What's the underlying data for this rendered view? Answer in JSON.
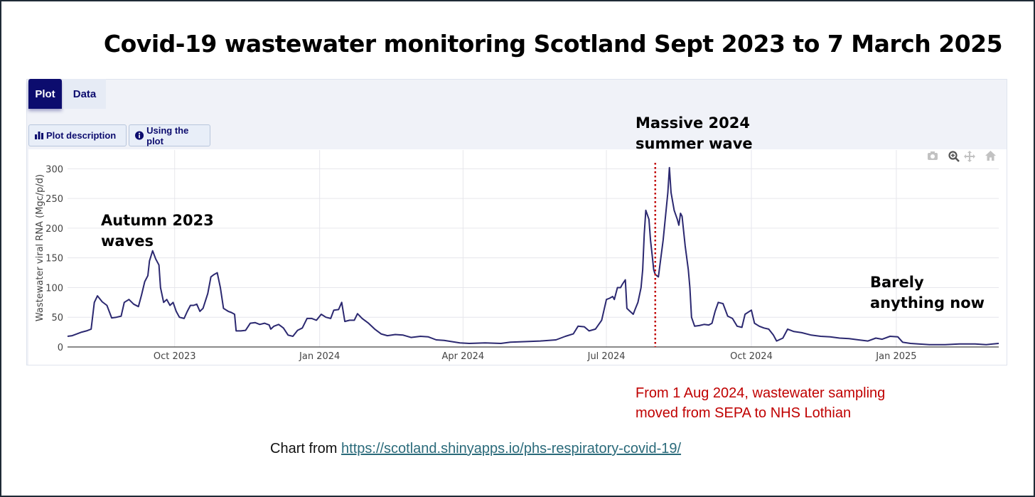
{
  "title": "Covid-19 wastewater monitoring Scotland Sept 2023 to 7 March 2025",
  "tabs": [
    {
      "label": "Plot"
    },
    {
      "label": "Data"
    }
  ],
  "buttons": {
    "plot_description": "Plot description",
    "using_the_plot": "Using the plot"
  },
  "modebar": [
    "camera-icon",
    "zoom-icon",
    "pan-icon",
    "home-icon"
  ],
  "annotations": {
    "autumn_line1": "Autumn 2023",
    "autumn_line2": "waves",
    "summer_line1": "Massive 2024",
    "summer_line2": "summer  wave",
    "now_line1": "Barely",
    "now_line2": "anything now"
  },
  "note": {
    "line1": "From 1 Aug 2024, wastewater sampling",
    "line2": "moved from SEPA to NHS Lothian"
  },
  "source": {
    "prefix": "Chart from ",
    "link": "https://scotland.shinyapps.io/phs-respiratory-covid-19/"
  },
  "colors": {
    "line": "#2b2870",
    "marker": "#c00000",
    "tab_active": "#0c0c6e"
  },
  "chart_data": {
    "type": "line",
    "title": "Covid-19 wastewater monitoring Scotland Sept 2023 to 7 March 2025",
    "xlabel": "",
    "ylabel": "Wastewater viral RNA (Mgc/p/d)",
    "ylim": [
      0,
      310
    ],
    "xlim": [
      "2023-07-25",
      "2025-03-07"
    ],
    "grid": true,
    "yticks": [
      0,
      50,
      100,
      150,
      200,
      250,
      300
    ],
    "xticks": [
      {
        "date": "2023-10-01",
        "label": "Oct 2023"
      },
      {
        "date": "2024-01-01",
        "label": "Jan 2024"
      },
      {
        "date": "2024-04-01",
        "label": "Apr 2024"
      },
      {
        "date": "2024-07-01",
        "label": "Jul 2024"
      },
      {
        "date": "2024-10-01",
        "label": "Oct 2024"
      },
      {
        "date": "2025-01-01",
        "label": "Jan 2025"
      }
    ],
    "vline": {
      "date": "2024-08-01",
      "label": "Sampling moved from SEPA to NHS Lothian"
    },
    "series": [
      {
        "name": "Scotland",
        "points": [
          [
            "2023-07-25",
            18
          ],
          [
            "2023-07-28",
            19
          ],
          [
            "2023-07-31",
            22
          ],
          [
            "2023-08-03",
            25
          ],
          [
            "2023-08-06",
            27
          ],
          [
            "2023-08-09",
            30
          ],
          [
            "2023-08-11",
            75
          ],
          [
            "2023-08-13",
            86
          ],
          [
            "2023-08-16",
            76
          ],
          [
            "2023-08-19",
            70
          ],
          [
            "2023-08-22",
            49
          ],
          [
            "2023-08-25",
            50
          ],
          [
            "2023-08-28",
            52
          ],
          [
            "2023-08-30",
            75
          ],
          [
            "2023-09-02",
            80
          ],
          [
            "2023-09-05",
            72
          ],
          [
            "2023-09-08",
            68
          ],
          [
            "2023-09-10",
            88
          ],
          [
            "2023-09-12",
            110
          ],
          [
            "2023-09-14",
            120
          ],
          [
            "2023-09-15",
            145
          ],
          [
            "2023-09-17",
            162
          ],
          [
            "2023-09-19",
            148
          ],
          [
            "2023-09-21",
            138
          ],
          [
            "2023-09-22",
            100
          ],
          [
            "2023-09-24",
            75
          ],
          [
            "2023-09-26",
            80
          ],
          [
            "2023-09-28",
            70
          ],
          [
            "2023-09-30",
            75
          ],
          [
            "2023-10-02",
            60
          ],
          [
            "2023-10-04",
            50
          ],
          [
            "2023-10-07",
            48
          ],
          [
            "2023-10-09",
            60
          ],
          [
            "2023-10-11",
            70
          ],
          [
            "2023-10-13",
            70
          ],
          [
            "2023-10-15",
            72
          ],
          [
            "2023-10-17",
            60
          ],
          [
            "2023-10-19",
            65
          ],
          [
            "2023-10-22",
            90
          ],
          [
            "2023-10-24",
            118
          ],
          [
            "2023-10-26",
            122
          ],
          [
            "2023-10-28",
            125
          ],
          [
            "2023-10-30",
            100
          ],
          [
            "2023-11-01",
            65
          ],
          [
            "2023-11-04",
            60
          ],
          [
            "2023-11-06",
            58
          ],
          [
            "2023-11-08",
            55
          ],
          [
            "2023-11-09",
            27
          ],
          [
            "2023-11-12",
            27
          ],
          [
            "2023-11-15",
            28
          ],
          [
            "2023-11-18",
            40
          ],
          [
            "2023-11-21",
            41
          ],
          [
            "2023-11-24",
            38
          ],
          [
            "2023-11-27",
            40
          ],
          [
            "2023-11-30",
            37
          ],
          [
            "2023-12-01",
            30
          ],
          [
            "2023-12-03",
            35
          ],
          [
            "2023-12-06",
            38
          ],
          [
            "2023-12-09",
            32
          ],
          [
            "2023-12-12",
            20
          ],
          [
            "2023-12-15",
            18
          ],
          [
            "2023-12-18",
            28
          ],
          [
            "2023-12-21",
            32
          ],
          [
            "2023-12-24",
            48
          ],
          [
            "2023-12-27",
            48
          ],
          [
            "2023-12-30",
            45
          ],
          [
            "2024-01-02",
            55
          ],
          [
            "2024-01-05",
            50
          ],
          [
            "2024-01-08",
            48
          ],
          [
            "2024-01-10",
            62
          ],
          [
            "2024-01-13",
            63
          ],
          [
            "2024-01-15",
            75
          ],
          [
            "2024-01-17",
            43
          ],
          [
            "2024-01-20",
            45
          ],
          [
            "2024-01-23",
            45
          ],
          [
            "2024-01-25",
            56
          ],
          [
            "2024-01-28",
            48
          ],
          [
            "2024-02-01",
            40
          ],
          [
            "2024-02-05",
            30
          ],
          [
            "2024-02-09",
            22
          ],
          [
            "2024-02-13",
            19
          ],
          [
            "2024-02-18",
            21
          ],
          [
            "2024-02-23",
            20
          ],
          [
            "2024-02-28",
            16
          ],
          [
            "2024-03-05",
            18
          ],
          [
            "2024-03-10",
            17
          ],
          [
            "2024-03-15",
            12
          ],
          [
            "2024-03-20",
            11
          ],
          [
            "2024-03-25",
            9
          ],
          [
            "2024-03-30",
            7
          ],
          [
            "2024-04-05",
            6
          ],
          [
            "2024-04-15",
            7
          ],
          [
            "2024-04-25",
            6
          ],
          [
            "2024-05-01",
            8
          ],
          [
            "2024-05-10",
            9
          ],
          [
            "2024-05-20",
            10
          ],
          [
            "2024-05-30",
            12
          ],
          [
            "2024-06-05",
            18
          ],
          [
            "2024-06-10",
            22
          ],
          [
            "2024-06-13",
            35
          ],
          [
            "2024-06-17",
            34
          ],
          [
            "2024-06-20",
            27
          ],
          [
            "2024-06-24",
            30
          ],
          [
            "2024-06-28",
            45
          ],
          [
            "2024-07-01",
            80
          ],
          [
            "2024-07-03",
            82
          ],
          [
            "2024-07-05",
            85
          ],
          [
            "2024-07-06",
            80
          ],
          [
            "2024-07-08",
            100
          ],
          [
            "2024-07-10",
            100
          ],
          [
            "2024-07-11",
            105
          ],
          [
            "2024-07-13",
            113
          ],
          [
            "2024-07-14",
            65
          ],
          [
            "2024-07-16",
            60
          ],
          [
            "2024-07-18",
            55
          ],
          [
            "2024-07-19",
            62
          ],
          [
            "2024-07-21",
            75
          ],
          [
            "2024-07-23",
            100
          ],
          [
            "2024-07-24",
            130
          ],
          [
            "2024-07-25",
            190
          ],
          [
            "2024-07-26",
            230
          ],
          [
            "2024-07-28",
            215
          ],
          [
            "2024-07-29",
            180
          ],
          [
            "2024-07-30",
            155
          ],
          [
            "2024-07-31",
            130
          ],
          [
            "2024-08-01",
            122
          ],
          [
            "2024-08-03",
            118
          ],
          [
            "2024-08-06",
            180
          ],
          [
            "2024-08-09",
            260
          ],
          [
            "2024-08-10",
            302
          ],
          [
            "2024-08-11",
            260
          ],
          [
            "2024-08-13",
            230
          ],
          [
            "2024-08-15",
            215
          ],
          [
            "2024-08-16",
            205
          ],
          [
            "2024-08-17",
            225
          ],
          [
            "2024-08-18",
            220
          ],
          [
            "2024-08-20",
            170
          ],
          [
            "2024-08-22",
            130
          ],
          [
            "2024-08-23",
            100
          ],
          [
            "2024-08-24",
            50
          ],
          [
            "2024-08-26",
            35
          ],
          [
            "2024-08-29",
            36
          ],
          [
            "2024-09-01",
            38
          ],
          [
            "2024-09-04",
            37
          ],
          [
            "2024-09-06",
            40
          ],
          [
            "2024-09-08",
            60
          ],
          [
            "2024-09-10",
            75
          ],
          [
            "2024-09-13",
            73
          ],
          [
            "2024-09-16",
            52
          ],
          [
            "2024-09-19",
            48
          ],
          [
            "2024-09-22",
            35
          ],
          [
            "2024-09-25",
            33
          ],
          [
            "2024-09-27",
            55
          ],
          [
            "2024-10-01",
            62
          ],
          [
            "2024-10-03",
            40
          ],
          [
            "2024-10-06",
            35
          ],
          [
            "2024-10-09",
            32
          ],
          [
            "2024-10-12",
            30
          ],
          [
            "2024-10-15",
            20
          ],
          [
            "2024-10-17",
            10
          ],
          [
            "2024-10-21",
            15
          ],
          [
            "2024-10-24",
            30
          ],
          [
            "2024-10-28",
            26
          ],
          [
            "2024-11-02",
            24
          ],
          [
            "2024-11-08",
            20
          ],
          [
            "2024-11-14",
            18
          ],
          [
            "2024-11-20",
            17
          ],
          [
            "2024-11-26",
            15
          ],
          [
            "2024-12-02",
            14
          ],
          [
            "2024-12-08",
            12
          ],
          [
            "2024-12-14",
            10
          ],
          [
            "2024-12-19",
            15
          ],
          [
            "2024-12-23",
            13
          ],
          [
            "2024-12-28",
            18
          ],
          [
            "2025-01-02",
            17
          ],
          [
            "2025-01-05",
            8
          ],
          [
            "2025-01-10",
            6
          ],
          [
            "2025-01-15",
            5
          ],
          [
            "2025-01-22",
            4
          ],
          [
            "2025-02-01",
            4
          ],
          [
            "2025-02-10",
            5
          ],
          [
            "2025-02-20",
            5
          ],
          [
            "2025-02-27",
            4
          ],
          [
            "2025-03-07",
            6
          ]
        ]
      }
    ]
  }
}
